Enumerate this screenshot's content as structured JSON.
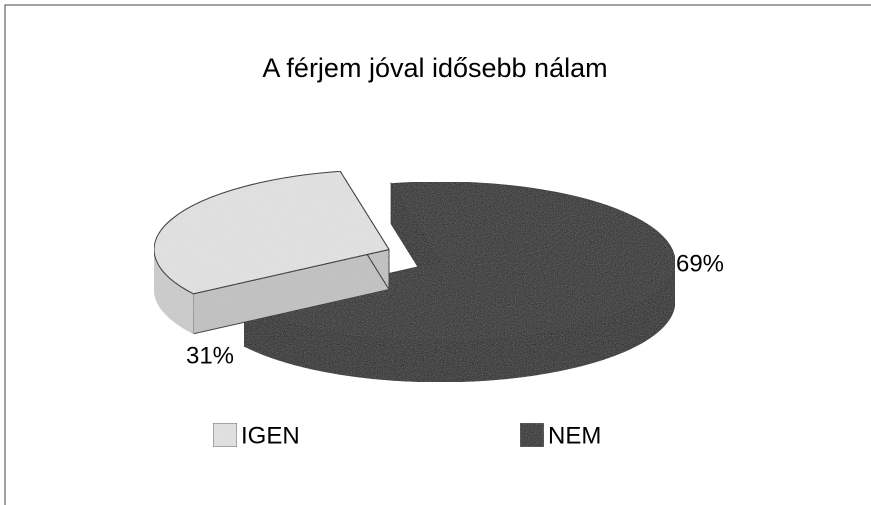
{
  "chart_data": {
    "type": "pie",
    "title": "A férjem jóval idősebb nálam",
    "categories": [
      "IGEN",
      "NEM"
    ],
    "values": [
      31,
      69
    ],
    "value_labels": [
      "31%",
      "69%"
    ],
    "colors": [
      "#e4e4e4",
      "#1c1c1c"
    ],
    "legend": "bottom",
    "three_d": true
  }
}
